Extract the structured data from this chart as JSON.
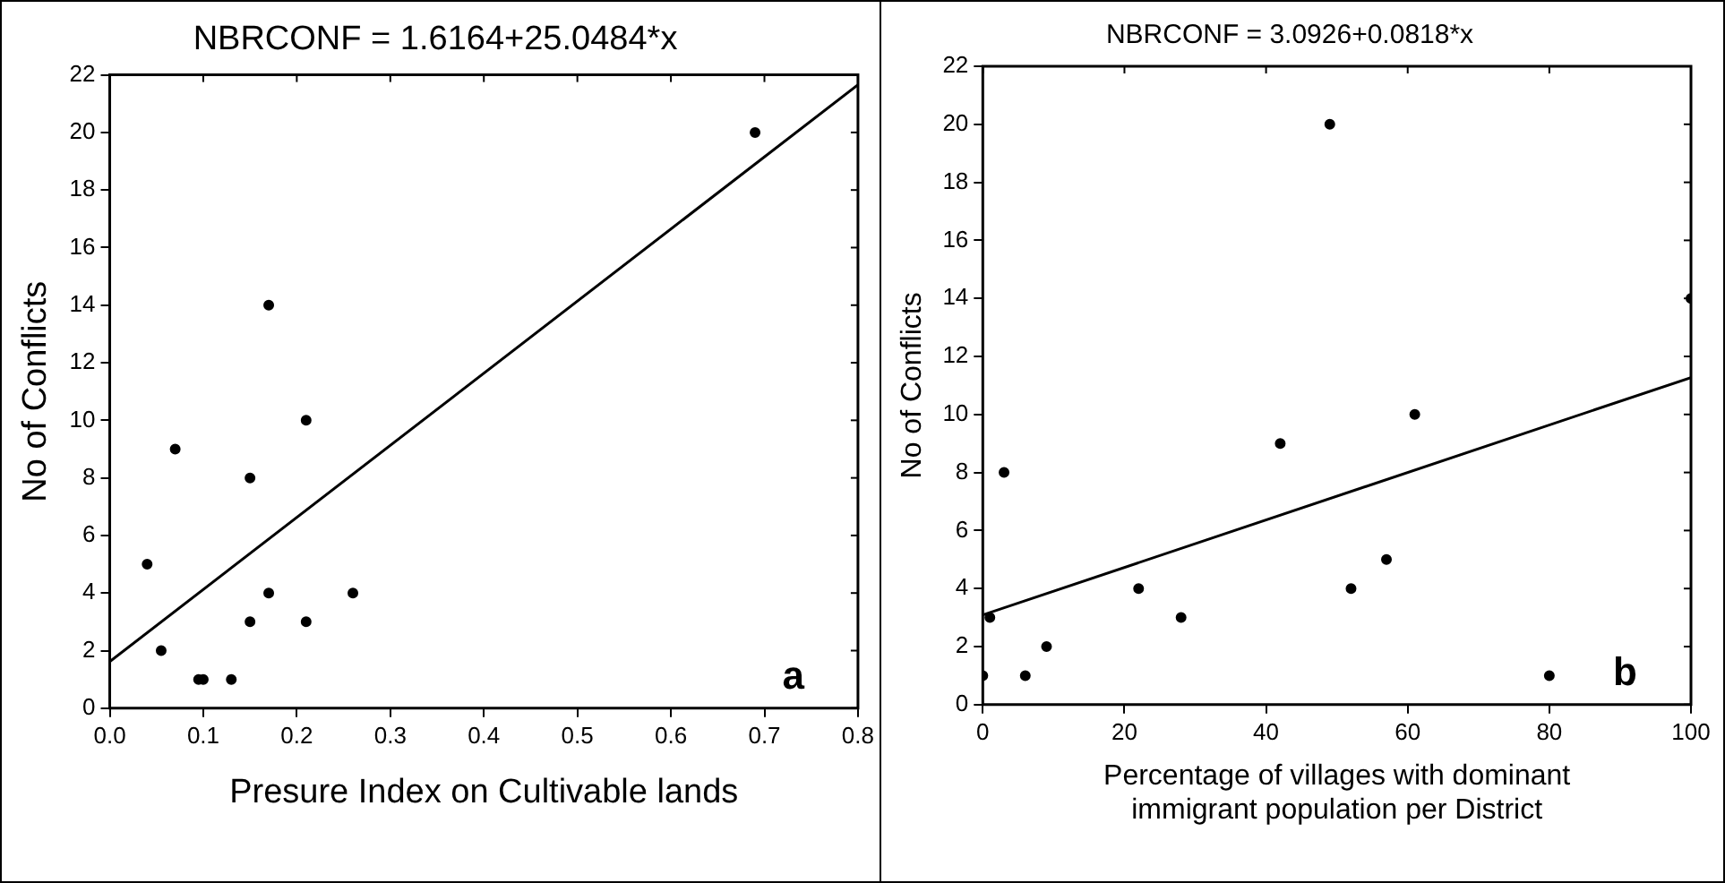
{
  "chart_data": [
    {
      "type": "scatter",
      "title": "NBRCONF = 1.6164+25.0484*x",
      "xlabel": "Presure Index on Cultivable lands",
      "ylabel": "No of Conflicts",
      "annotations": [
        "a"
      ],
      "series": [
        {
          "color": "#000000",
          "marker": "circle",
          "x": [
            0.04,
            0.055,
            0.07,
            0.095,
            0.1,
            0.13,
            0.15,
            0.15,
            0.17,
            0.17,
            0.21,
            0.21,
            0.26,
            0.69
          ],
          "values": [
            5,
            2,
            9,
            1,
            1,
            1,
            3,
            8,
            14,
            4,
            10,
            3,
            4,
            20
          ]
        },
        {
          "type": "line",
          "color": "#000000",
          "marker": "none",
          "x": [
            0,
            0.8
          ],
          "values": [
            1.6164,
            21.65512
          ]
        }
      ],
      "xlim": [
        0,
        0.8
      ],
      "xticks": [
        {
          "value": 0,
          "label": "0.0"
        },
        0.1,
        0.2,
        0.3,
        0.4,
        0.5,
        0.6,
        0.7,
        0.8
      ],
      "ylim": [
        0,
        22
      ],
      "yticks": [
        0,
        2,
        4,
        6,
        8,
        10,
        12,
        14,
        16,
        18,
        20,
        22
      ],
      "grid": false,
      "legend": false
    },
    {
      "type": "scatter",
      "title": "NBRCONF = 3.0926+0.0818*x",
      "xlabel": "Percentage of villages with dominant immigrant population per District",
      "ylabel": "No of Conflicts",
      "annotations": [
        "b"
      ],
      "series": [
        {
          "color": "#000000",
          "marker": "circle",
          "x": [
            0,
            1,
            3,
            6,
            9,
            22,
            28,
            42,
            49,
            52,
            57,
            61,
            80,
            100
          ],
          "values": [
            1,
            3,
            8,
            1,
            2,
            4,
            3,
            9,
            20,
            4,
            5,
            10,
            1,
            14
          ]
        },
        {
          "type": "line",
          "color": "#000000",
          "marker": "none",
          "x": [
            0,
            100
          ],
          "values": [
            3.0926,
            11.2726
          ]
        }
      ],
      "xlim": [
        0,
        100
      ],
      "xticks": [
        0,
        20,
        40,
        60,
        80,
        100
      ],
      "ylim": [
        0,
        22
      ],
      "yticks": [
        0,
        2,
        4,
        6,
        8,
        10,
        12,
        14,
        16,
        18,
        20,
        22
      ],
      "grid": false,
      "legend": false
    }
  ]
}
